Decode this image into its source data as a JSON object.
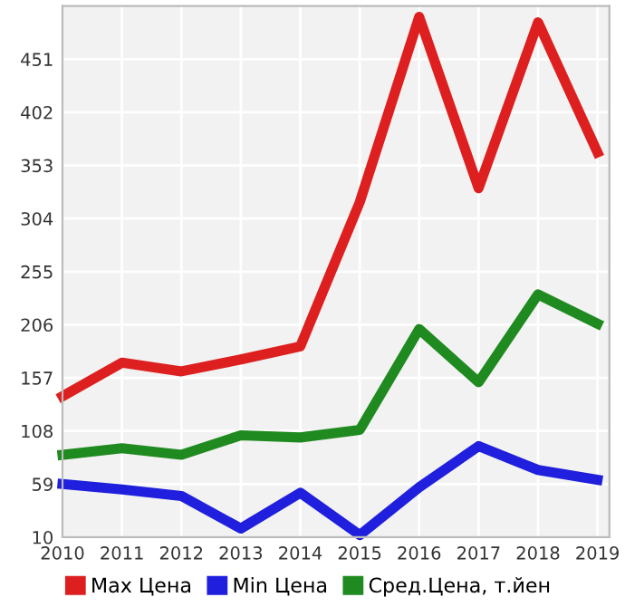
{
  "chart_data": {
    "type": "line",
    "x": [
      2010,
      2011,
      2012,
      2013,
      2014,
      2015,
      2016,
      2017,
      2018,
      2019
    ],
    "series": [
      {
        "name": "Max Цена",
        "color": "#dd1f1f",
        "values": [
          140,
          171,
          163,
          174,
          186,
          319,
          490,
          332,
          485,
          365
        ]
      },
      {
        "name": "Min Цена",
        "color": "#1f1fdd",
        "values": [
          59,
          54,
          48,
          18,
          51,
          12,
          56,
          94,
          72,
          63
        ]
      },
      {
        "name": "Сред.Цена, т.йен",
        "color": "#1f8a1f",
        "values": [
          86,
          92,
          86,
          104,
          102,
          109,
          202,
          153,
          234,
          207
        ]
      }
    ],
    "xlim": [
      2010,
      2019.2
    ],
    "xticks": [
      2010,
      2011,
      2012,
      2013,
      2014,
      2015,
      2016,
      2017,
      2018,
      2019
    ],
    "ylim": [
      10,
      500
    ],
    "yticks": [
      10,
      59,
      108,
      157,
      206,
      255,
      304,
      353,
      402,
      451
    ],
    "grid": true,
    "legend": "bottom",
    "marker": "none",
    "line_style": "solid"
  }
}
